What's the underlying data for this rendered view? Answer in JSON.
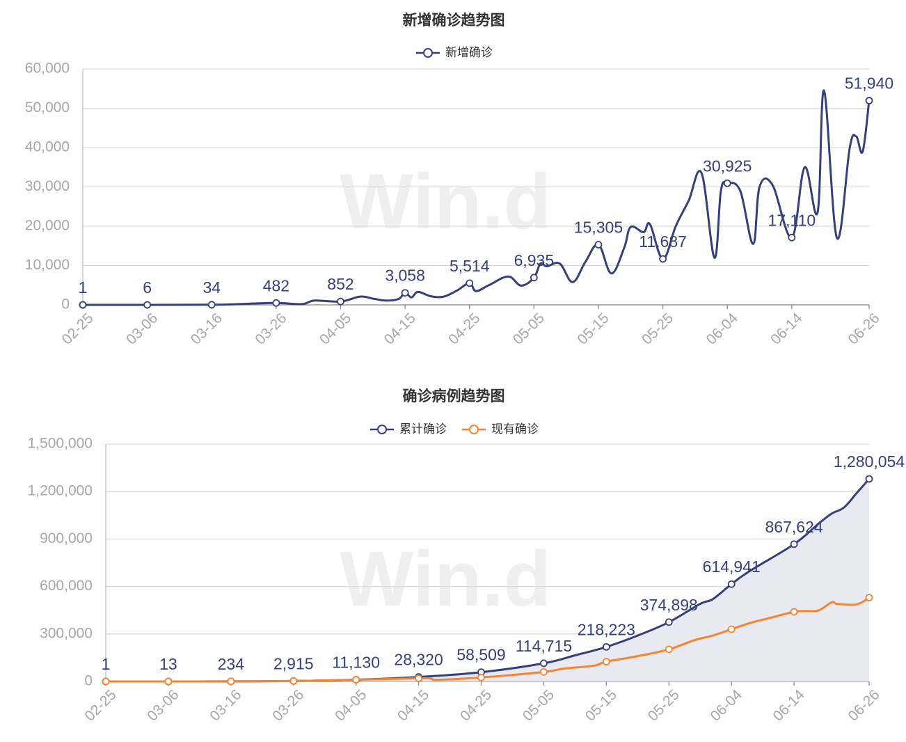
{
  "chart_data": [
    {
      "type": "line",
      "title": "新增确诊趋势图",
      "legend": [
        "新增确诊"
      ],
      "legend_position": "top-center",
      "grid": true,
      "ylim": [
        0,
        60000
      ],
      "y_ticks": [
        "60,000",
        "50,000",
        "40,000",
        "30,000",
        "20,000",
        "10,000",
        "0"
      ],
      "x_ticks": [
        "02-25",
        "03-06",
        "03-16",
        "03-26",
        "04-05",
        "04-15",
        "04-25",
        "05-05",
        "05-15",
        "05-25",
        "06-04",
        "06-14",
        "06-26"
      ],
      "series": [
        {
          "name": "新增确诊",
          "color": "#33407a",
          "points": [
            [
              "02-25",
              1
            ],
            [
              "03-06",
              6
            ],
            [
              "03-16",
              34
            ],
            [
              "03-21",
              250
            ],
            [
              "03-26",
              482
            ],
            [
              "03-30",
              200
            ],
            [
              "04-01",
              1100
            ],
            [
              "04-05",
              852
            ],
            [
              "04-08",
              2100
            ],
            [
              "04-10",
              1600
            ],
            [
              "04-12",
              1100
            ],
            [
              "04-14",
              1500
            ],
            [
              "04-15",
              3058
            ],
            [
              "04-16",
              1900
            ],
            [
              "04-17",
              3300
            ],
            [
              "04-19",
              2200
            ],
            [
              "04-21",
              2100
            ],
            [
              "04-23",
              3600
            ],
            [
              "04-25",
              5514
            ],
            [
              "04-26",
              3500
            ],
            [
              "04-28",
              5000
            ],
            [
              "05-01",
              7200
            ],
            [
              "05-03",
              4900
            ],
            [
              "05-05",
              6935
            ],
            [
              "05-06",
              10500
            ],
            [
              "05-07",
              9800
            ],
            [
              "05-09",
              10500
            ],
            [
              "05-11",
              5800
            ],
            [
              "05-13",
              11000
            ],
            [
              "05-15",
              15305
            ],
            [
              "05-17",
              8000
            ],
            [
              "05-19",
              14500
            ],
            [
              "05-20",
              19800
            ],
            [
              "05-22",
              18500
            ],
            [
              "05-23",
              20500
            ],
            [
              "05-25",
              11687
            ],
            [
              "05-27",
              20000
            ],
            [
              "05-29",
              26500
            ],
            [
              "05-31",
              33500
            ],
            [
              "06-02",
              12000
            ],
            [
              "06-03",
              29000
            ],
            [
              "06-04",
              30925
            ],
            [
              "06-06",
              29000
            ],
            [
              "06-08",
              15500
            ],
            [
              "06-09",
              30000
            ],
            [
              "06-11",
              30500
            ],
            [
              "06-14",
              17110
            ],
            [
              "06-16",
              35000
            ],
            [
              "06-18",
              23500
            ],
            [
              "06-19",
              54500
            ],
            [
              "06-21",
              17000
            ],
            [
              "06-23",
              40000
            ],
            [
              "06-24",
              42800
            ],
            [
              "06-25",
              39000
            ],
            [
              "06-26",
              51940
            ]
          ]
        }
      ],
      "labels": [
        {
          "x": "02-25",
          "text": "1"
        },
        {
          "x": "03-06",
          "text": "6"
        },
        {
          "x": "03-16",
          "text": "34"
        },
        {
          "x": "03-26",
          "text": "482"
        },
        {
          "x": "04-05",
          "text": "852"
        },
        {
          "x": "04-15",
          "text": "3,058"
        },
        {
          "x": "04-25",
          "text": "5,514"
        },
        {
          "x": "05-05",
          "text": "6,935"
        },
        {
          "x": "05-15",
          "text": "15,305"
        },
        {
          "x": "05-25",
          "text": "11,687"
        },
        {
          "x": "06-04",
          "text": "30,925"
        },
        {
          "x": "06-14",
          "text": "17,110"
        },
        {
          "x": "06-26",
          "text": "51,940"
        }
      ]
    },
    {
      "type": "line",
      "title": "确诊病例趋势图",
      "legend": [
        "累计确诊",
        "现有确诊"
      ],
      "legend_position": "top-center",
      "grid": true,
      "ylim": [
        0,
        1500000
      ],
      "y_ticks": [
        "1,500,000",
        "1,200,000",
        "900,000",
        "600,000",
        "300,000",
        "0"
      ],
      "x_ticks": [
        "02-25",
        "03-06",
        "03-16",
        "03-26",
        "04-05",
        "04-15",
        "04-25",
        "05-05",
        "05-15",
        "05-25",
        "06-04",
        "06-14",
        "06-26"
      ],
      "series": [
        {
          "name": "累计确诊",
          "color": "#33407a",
          "area": true,
          "points": [
            [
              "02-25",
              1
            ],
            [
              "03-06",
              13
            ],
            [
              "03-16",
              234
            ],
            [
              "03-26",
              2915
            ],
            [
              "04-05",
              11130
            ],
            [
              "04-15",
              28320
            ],
            [
              "04-25",
              58509
            ],
            [
              "05-05",
              114715
            ],
            [
              "05-10",
              165000
            ],
            [
              "05-15",
              218223
            ],
            [
              "05-20",
              290000
            ],
            [
              "05-25",
              374898
            ],
            [
              "05-30",
              490000
            ],
            [
              "06-01",
              520000
            ],
            [
              "06-04",
              614941
            ],
            [
              "06-07",
              700000
            ],
            [
              "06-14",
              867624
            ],
            [
              "06-18",
              1000000
            ],
            [
              "06-20",
              1060000
            ],
            [
              "06-22",
              1100000
            ],
            [
              "06-24",
              1190000
            ],
            [
              "06-26",
              1280054
            ]
          ]
        },
        {
          "name": "现有确诊",
          "color": "#f7832d",
          "area": false,
          "points": [
            [
              "02-25",
              1
            ],
            [
              "03-06",
              12
            ],
            [
              "03-16",
              220
            ],
            [
              "03-26",
              2800
            ],
            [
              "04-05",
              10500
            ],
            [
              "04-15",
              20000
            ],
            [
              "04-17",
              18000
            ],
            [
              "04-18",
              10000
            ],
            [
              "04-25",
              25000
            ],
            [
              "05-05",
              60000
            ],
            [
              "05-08",
              80000
            ],
            [
              "05-13",
              100000
            ],
            [
              "05-15",
              125000
            ],
            [
              "05-20",
              160000
            ],
            [
              "05-25",
              203000
            ],
            [
              "05-29",
              260000
            ],
            [
              "06-01",
              290000
            ],
            [
              "06-04",
              330000
            ],
            [
              "06-07",
              370000
            ],
            [
              "06-10",
              400000
            ],
            [
              "06-14",
              440000
            ],
            [
              "06-16",
              445000
            ],
            [
              "06-18",
              450000
            ],
            [
              "06-20",
              500000
            ],
            [
              "06-21",
              490000
            ],
            [
              "06-24",
              487000
            ],
            [
              "06-26",
              530000
            ]
          ]
        }
      ],
      "labels": [
        {
          "x": "02-25",
          "text": "1"
        },
        {
          "x": "03-06",
          "text": "13"
        },
        {
          "x": "03-16",
          "text": "234"
        },
        {
          "x": "03-26",
          "text": "2,915"
        },
        {
          "x": "04-05",
          "text": "11,130"
        },
        {
          "x": "04-15",
          "text": "28,320"
        },
        {
          "x": "04-25",
          "text": "58,509"
        },
        {
          "x": "05-05",
          "text": "114,715"
        },
        {
          "x": "05-15",
          "text": "218,223"
        },
        {
          "x": "05-25",
          "text": "374,898"
        },
        {
          "x": "06-04",
          "text": "614,941"
        },
        {
          "x": "06-14",
          "text": "867,624"
        },
        {
          "x": "06-26",
          "text": "1,280,054"
        }
      ]
    }
  ],
  "watermark": "Win.d"
}
